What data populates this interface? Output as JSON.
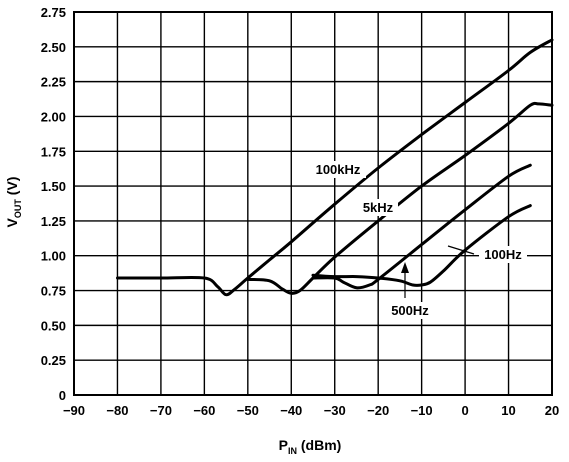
{
  "chart_data": {
    "type": "line",
    "xlabel": "P",
    "xlabel_sub": "IN",
    "xlabel_suffix": " (dBm)",
    "ylabel": "V",
    "ylabel_sub": "OUT",
    "ylabel_suffix": " (V)",
    "xlim": [
      -90,
      20
    ],
    "ylim": [
      0,
      2.75
    ],
    "xticks": [
      "−90",
      "−80",
      "−70",
      "−60",
      "−50",
      "−40",
      "−30",
      "−20",
      "−10",
      "0",
      "10",
      "20"
    ],
    "yticks": [
      "0",
      "0.25",
      "0.50",
      "0.75",
      "1.00",
      "1.25",
      "1.50",
      "1.75",
      "2.00",
      "2.25",
      "2.50",
      "2.75"
    ],
    "grid": true,
    "series": [
      {
        "name": "100kHz",
        "x": [
          -80,
          -70,
          -60,
          -57,
          -55,
          -53,
          -50,
          -45,
          -40,
          -30,
          -20,
          -10,
          0,
          10,
          15,
          20
        ],
        "y": [
          0.84,
          0.84,
          0.84,
          0.78,
          0.72,
          0.76,
          0.84,
          0.97,
          1.1,
          1.37,
          1.63,
          1.87,
          2.1,
          2.33,
          2.46,
          2.55
        ]
      },
      {
        "name": "5kHz",
        "x": [
          -50,
          -45,
          -42,
          -40,
          -38,
          -35,
          -30,
          -20,
          -10,
          0,
          10,
          15,
          17,
          20
        ],
        "y": [
          0.83,
          0.82,
          0.76,
          0.73,
          0.75,
          0.84,
          0.99,
          1.25,
          1.5,
          1.72,
          1.95,
          2.08,
          2.09,
          2.08
        ]
      },
      {
        "name": "500Hz",
        "x": [
          -35,
          -30,
          -28,
          -25,
          -22,
          -20,
          -10,
          0,
          10,
          15
        ],
        "y": [
          0.84,
          0.84,
          0.81,
          0.77,
          0.79,
          0.83,
          1.08,
          1.33,
          1.57,
          1.65
        ]
      },
      {
        "name": "100Hz",
        "x": [
          -35,
          -30,
          -25,
          -20,
          -15,
          -12,
          -10,
          -8,
          -5,
          0,
          10,
          15
        ],
        "y": [
          0.86,
          0.85,
          0.85,
          0.84,
          0.82,
          0.79,
          0.79,
          0.81,
          0.89,
          1.04,
          1.28,
          1.36
        ]
      }
    ],
    "annotations": [
      {
        "text": "100kHz",
        "series": 0
      },
      {
        "text": "5kHz",
        "series": 1
      },
      {
        "text": "500Hz",
        "series": 2
      },
      {
        "text": "100Hz",
        "series": 3
      }
    ]
  }
}
